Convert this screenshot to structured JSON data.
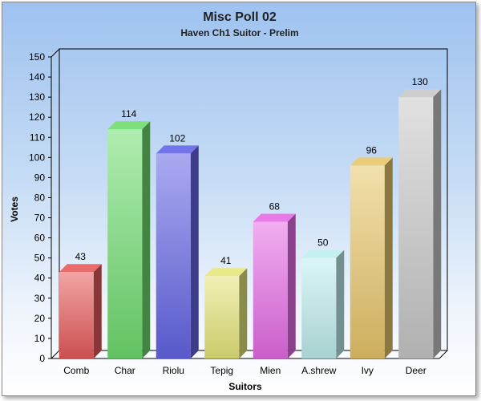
{
  "chart_data": {
    "type": "bar",
    "title": "Misc Poll 02",
    "subtitle": "Haven Ch1 Suitor - Prelim",
    "xlabel": "Suitors",
    "ylabel": "Votes",
    "ylim": [
      0,
      150
    ],
    "ytick_step": 10,
    "yticks": [
      "0",
      "10",
      "20",
      "30",
      "40",
      "50",
      "60",
      "70",
      "80",
      "90",
      "100",
      "110",
      "120",
      "130",
      "140",
      "150"
    ],
    "categories": [
      "Comb",
      "Char",
      "Riolu",
      "Tepig",
      "Mien",
      "A.shrew",
      "Ivy",
      "Deer"
    ],
    "values": [
      43,
      114,
      102,
      41,
      68,
      50,
      96,
      130
    ],
    "data_labels": [
      "43",
      "114",
      "102",
      "41",
      "68",
      "50",
      "96",
      "130"
    ],
    "colors": [
      "#e85a5a",
      "#6fdc6f",
      "#6464e6",
      "#e6e67a",
      "#e66be6",
      "#bfeeee",
      "#e8c66a",
      "#c8c8c8"
    ],
    "grid": false,
    "legend": "none"
  }
}
